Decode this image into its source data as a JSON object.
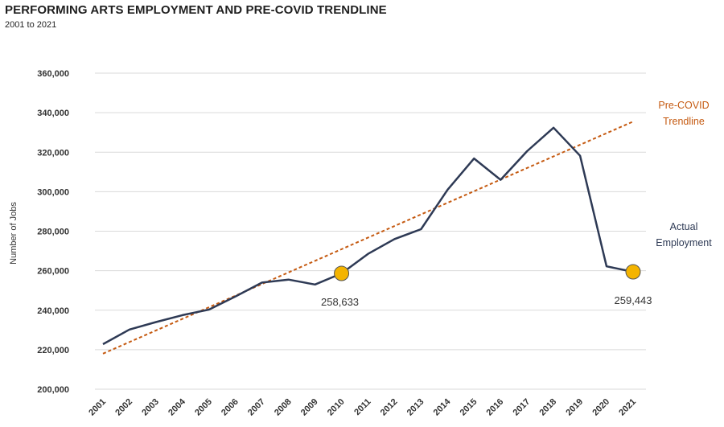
{
  "header": {
    "title": "PERFORMING ARTS EMPLOYMENT AND PRE-COVID TRENDLINE",
    "subtitle": "2001 to 2021"
  },
  "colors": {
    "actual": "#2e3a55",
    "trend": "#c55a11",
    "marker": "#f4b400",
    "grid": "#d9d9d9"
  },
  "chart_data": {
    "type": "line",
    "title": "PERFORMING ARTS EMPLOYMENT AND PRE-COVID TRENDLINE",
    "subtitle": "2001 to 2021",
    "ylabel": "Number of Jobs",
    "xlabel": "",
    "ylim": [
      200000,
      360000
    ],
    "yticks": [
      200000,
      220000,
      240000,
      260000,
      280000,
      300000,
      320000,
      340000,
      360000
    ],
    "ytick_labels": [
      "200,000",
      "220,000",
      "240,000",
      "260,000",
      "280,000",
      "300,000",
      "320,000",
      "340,000",
      "360,000"
    ],
    "x": [
      "2001",
      "2002",
      "2003",
      "2004",
      "2005",
      "2006",
      "2007",
      "2008",
      "2009",
      "2010",
      "2011",
      "2012",
      "2013",
      "2014",
      "2015",
      "2016",
      "2017",
      "2018",
      "2019",
      "2020",
      "2021"
    ],
    "grid": true,
    "series": [
      {
        "name": "Actual Employment",
        "style": "solid",
        "values": [
          222800,
          230200,
          234000,
          237500,
          240300,
          247000,
          254000,
          255500,
          253000,
          258633,
          268500,
          276000,
          281000,
          301000,
          316800,
          306000,
          320500,
          332400,
          318200,
          262200,
          259443
        ]
      },
      {
        "name": "Pre-COVID Trendline",
        "style": "dashed",
        "values": [
          218000,
          null,
          null,
          null,
          null,
          null,
          null,
          null,
          null,
          null,
          null,
          null,
          null,
          null,
          null,
          null,
          null,
          null,
          null,
          null,
          335500
        ]
      }
    ],
    "highlighted_points": [
      {
        "x": "2010",
        "value": 258633,
        "label": "258,633"
      },
      {
        "x": "2021",
        "value": 259443,
        "label": "259,443"
      }
    ],
    "legend": [
      {
        "label_line1": "Pre-COVID",
        "label_line2": "Trendline",
        "placement": "right, near end of trendline"
      },
      {
        "label_line1": "Actual",
        "label_line2": "Employment",
        "placement": "right, near end of actual line"
      }
    ]
  }
}
